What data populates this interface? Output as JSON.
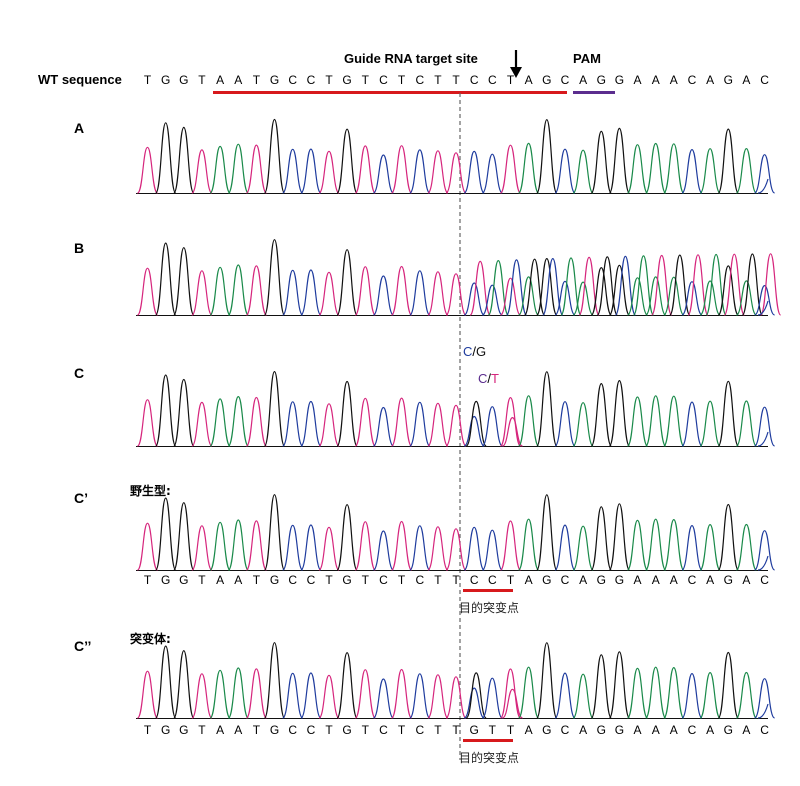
{
  "header": {
    "guide_label": "Guide RNA target site",
    "pam_label": "PAM",
    "wt_label": "WT sequence",
    "wt_sequence": "TGGTAATGCCTGTCTCTTCCTAGCAGGAAACAGAC"
  },
  "panels": [
    {
      "id": "A",
      "label": "A",
      "mode": "clean",
      "sublabel": ""
    },
    {
      "id": "B",
      "label": "B",
      "mode": "mixed",
      "sublabel": ""
    },
    {
      "id": "C",
      "label": "C",
      "mode": "het",
      "sublabel": ""
    },
    {
      "id": "Cp",
      "label": "C’",
      "mode": "clean",
      "sublabel": "野生型:"
    },
    {
      "id": "Cpp",
      "label": "C’’",
      "mode": "het",
      "sublabel": "突变体:"
    }
  ],
  "het_annotations": {
    "first": {
      "base1": "C",
      "sep": "/",
      "base2": "G"
    },
    "second": {
      "base1": "C",
      "sep": "/",
      "base2": "T"
    }
  },
  "wildtype_seq": "TGGTAATGCCTGTCTCTTCCTAGCAGGAAACAGAC",
  "mutant_seq": "TGGTAATGCCTGTCTCTTGTTAGCAGGAAACAGAC",
  "target_point_label": "目的突变点",
  "colors": {
    "A": "#1a8a4a",
    "C": "#1f3c9e",
    "G": "#111111",
    "T": "#d6267d",
    "guide_bar": "#d7191c",
    "pam_bar": "#5b2d8e"
  }
}
